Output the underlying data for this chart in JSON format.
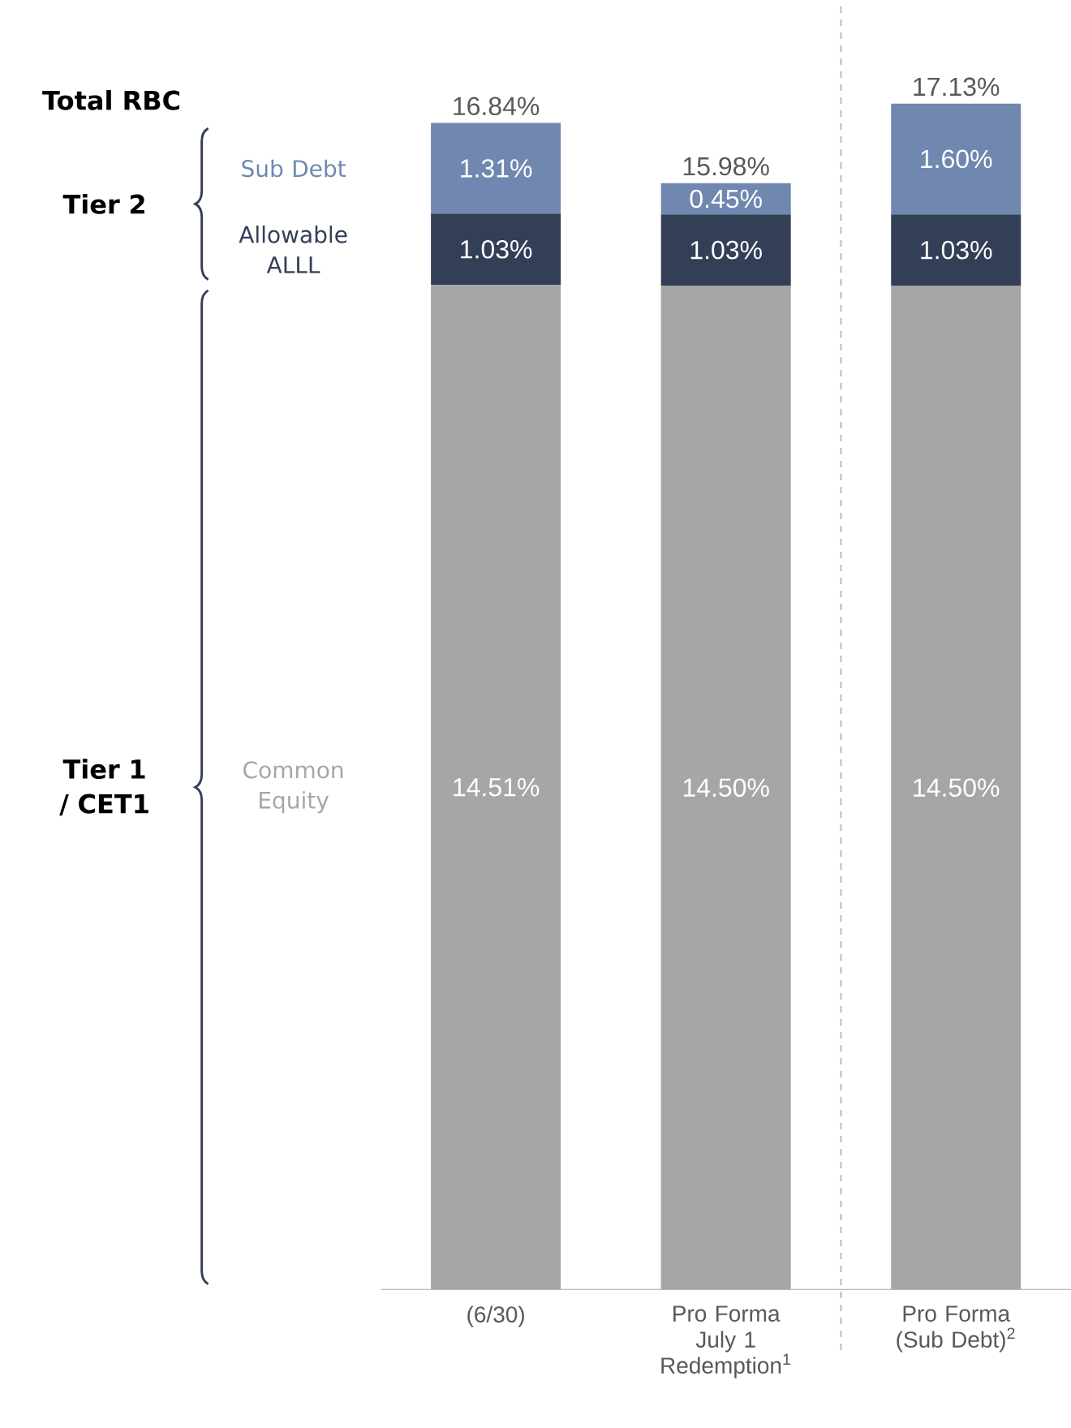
{
  "chart_data": {
    "type": "bar",
    "stacked": true,
    "categories": [
      "(6/30)",
      "Pro Forma July 1 Redemption$^{1}$",
      "Pro Forma (Sub Debt)$^{2}$"
    ],
    "series": [
      {
        "name": "Common Equity",
        "color": "#a6a6a6",
        "values": [
          14.51,
          14.5,
          14.5
        ],
        "value_labels": [
          "14.51%",
          "14.50%",
          "14.50%"
        ]
      },
      {
        "name": "Allowable ALLL",
        "color": "#333f57",
        "values": [
          1.03,
          1.03,
          1.03
        ],
        "value_labels": [
          "1.03%",
          "1.03%",
          "1.03%"
        ]
      },
      {
        "name": "Sub Debt",
        "color": "#7088b0",
        "values": [
          1.31,
          0.45,
          1.6
        ],
        "value_labels": [
          "1.31%",
          "0.45%",
          "1.60%"
        ]
      }
    ],
    "totals": [
      "16.84%",
      "15.98%",
      "17.13%"
    ],
    "annotations": [
      "Total RBC",
      "Tier 2",
      "Tier 1 / CET1"
    ]
  }
}
